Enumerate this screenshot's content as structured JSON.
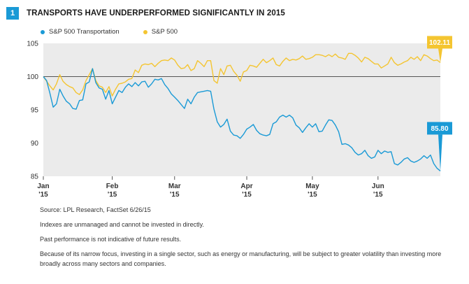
{
  "figure": {
    "number": "1",
    "title": "TRANSPORTS HAVE UNDERPERFORMED SIGNIFICANTLY IN 2015"
  },
  "colors": {
    "transport": "#1a9ad6",
    "sp500": "#f4c531",
    "plot_bg": "#ebebeb",
    "baseline": "#555555",
    "badge": "#1a9ad6"
  },
  "chart_data": {
    "type": "line",
    "title": "TRANSPORTS HAVE UNDERPERFORMED SIGNIFICANTLY IN 2015",
    "xlabel": "",
    "ylabel": "",
    "ylim": [
      85,
      105
    ],
    "yticks": [
      "105",
      "100",
      "95",
      "90",
      "85"
    ],
    "xticks": [
      {
        "month": "Jan",
        "year": "'15"
      },
      {
        "month": "Feb",
        "year": "'15"
      },
      {
        "month": "Mar",
        "year": "'15"
      },
      {
        "month": "Apr",
        "year": "'15"
      },
      {
        "month": "May",
        "year": "'15"
      },
      {
        "month": "Jun",
        "year": "'15"
      }
    ],
    "baseline": 100,
    "grid": false,
    "legend_position": "top-left",
    "series": [
      {
        "name": "S&P 500 Transportation",
        "color": "#1a9ad6",
        "end_label": "85.80",
        "values": [
          100,
          99.4,
          97.5,
          95.4,
          95.9,
          98.1,
          97.1,
          96.3,
          95.9,
          95.2,
          95.1,
          96.4,
          96.5,
          98.9,
          99.2,
          101.2,
          99.1,
          98.3,
          98.1,
          96.6,
          97.9,
          95.9,
          96.9,
          97.9,
          97.6,
          98.4,
          98.9,
          98.5,
          99.1,
          98.6,
          99.2,
          99.3,
          98.4,
          98.9,
          99.6,
          99.5,
          99.7,
          98.8,
          98.2,
          97.4,
          96.9,
          96.4,
          95.8,
          95.2,
          96.6,
          95.9,
          96.9,
          97.6,
          97.7,
          97.8,
          97.9,
          97.8,
          95.1,
          93.2,
          92.4,
          92.8,
          93.6,
          91.8,
          91.2,
          91.1,
          90.7,
          91.3,
          92.1,
          92.4,
          92.8,
          91.9,
          91.4,
          91.2,
          91.1,
          91.3,
          92.9,
          93.2,
          93.9,
          94.2,
          93.9,
          94.2,
          93.8,
          92.7,
          92.3,
          91.6,
          92.3,
          92.9,
          92.4,
          92.9,
          91.7,
          91.8,
          92.7,
          93.5,
          93.4,
          92.7,
          91.7,
          89.8,
          89.9,
          89.7,
          89.3,
          88.6,
          88.2,
          88.4,
          88.9,
          88.1,
          87.7,
          87.9,
          88.9,
          88.4,
          88.8,
          88.6,
          88.7,
          86.9,
          86.7,
          87.1,
          87.6,
          87.8,
          87.3,
          87.1,
          87.3,
          87.6,
          88.1,
          87.7,
          88.2,
          86.9,
          86.2,
          85.8
        ]
      },
      {
        "name": "S&P 500",
        "color": "#f4c531",
        "end_label": "102.11",
        "values": [
          100,
          99.3,
          98.6,
          98.0,
          98.9,
          100.3,
          99.3,
          98.8,
          98.5,
          98.3,
          97.6,
          97.3,
          98.0,
          99.4,
          100.3,
          101.2,
          99.4,
          98.6,
          98.4,
          97.6,
          98.5,
          97.1,
          98.1,
          98.9,
          99.0,
          99.2,
          99.6,
          99.7,
          101.0,
          100.6,
          101.7,
          101.9,
          101.8,
          102.0,
          101.5,
          102.0,
          102.4,
          102.5,
          102.4,
          102.8,
          102.5,
          101.7,
          101.2,
          101.3,
          101.8,
          100.9,
          101.2,
          102.4,
          102.0,
          101.5,
          102.4,
          102.4,
          99.4,
          99.0,
          101.2,
          100.3,
          101.6,
          101.7,
          100.8,
          100.2,
          99.3,
          100.7,
          100.9,
          101.7,
          101.6,
          101.4,
          102.0,
          102.6,
          102.1,
          102.4,
          102.8,
          101.8,
          101.6,
          102.3,
          102.8,
          102.4,
          102.6,
          102.5,
          102.7,
          103.1,
          102.6,
          102.7,
          102.9,
          103.3,
          103.3,
          103.2,
          103.0,
          103.3,
          103.0,
          103.4,
          102.9,
          102.8,
          102.6,
          103.5,
          103.5,
          103.2,
          102.8,
          102.2,
          102.9,
          102.7,
          102.3,
          101.9,
          101.9,
          101.3,
          101.6,
          101.9,
          102.9,
          102.1,
          101.7,
          101.9,
          102.2,
          102.4,
          102.9,
          102.6,
          103.0,
          102.4,
          103.3,
          103.1,
          102.7,
          102.4,
          102.5,
          102.11
        ]
      }
    ]
  },
  "notes": {
    "source": "Source: LPL Research, FactSet  6/26/15",
    "line1": "Indexes are unmanaged and cannot be invested in directly.",
    "line2": "Past performance is not indicative of future results.",
    "line3": "Because of its narrow focus, investing in a single sector, such as energy or manufacturing, will be subject to greater volatility than investing more broadly across many sectors and companies."
  }
}
